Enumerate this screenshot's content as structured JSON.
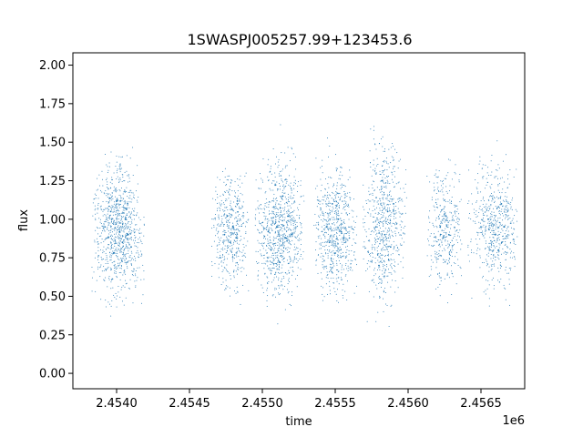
{
  "chart_data": {
    "type": "scatter",
    "title": "1SWASPJ005257.99+123453.6",
    "xlabel": "time",
    "ylabel": "flux",
    "x_offset_label": "1e6",
    "xlim": [
      2.4537,
      2.4568
    ],
    "ylim": [
      -0.1,
      2.08
    ],
    "xticks": [
      2.454,
      2.4545,
      2.455,
      2.4555,
      2.456,
      2.4565
    ],
    "xtick_labels": [
      "2.4540",
      "2.4545",
      "2.4550",
      "2.4555",
      "2.4560",
      "2.4565"
    ],
    "yticks": [
      0.0,
      0.25,
      0.5,
      0.75,
      1.0,
      1.25,
      1.5,
      1.75,
      2.0
    ],
    "ytick_labels": [
      "0.00",
      "0.25",
      "0.50",
      "0.75",
      "1.00",
      "1.25",
      "1.50",
      "1.75",
      "2.00"
    ],
    "grid": false,
    "point_color": "#1f77b4",
    "series": [
      {
        "x": [
          2.45392,
          2.45394,
          2.45396,
          2.45398,
          2.454,
          2.45402,
          2.45404,
          2.45406,
          2.45408,
          2.4541,
          2.45474,
          2.45476,
          2.45478,
          2.4548,
          2.45482,
          2.45504,
          2.45506,
          2.45508,
          2.4551,
          2.45512,
          2.45514,
          2.45516,
          2.45518,
          2.4552,
          2.45544,
          2.45546,
          2.45548,
          2.4555,
          2.45552,
          2.45554,
          2.45556,
          2.45578,
          2.4558,
          2.45582,
          2.45584,
          2.45586,
          2.45588,
          2.4559,
          2.45622,
          2.45624,
          2.45626,
          2.45628,
          2.4565,
          2.45655,
          2.4566,
          2.45662,
          2.45664,
          2.45666
        ],
        "y": [
          0.95,
          0.88,
          1.05,
          0.78,
          1.12,
          0.92,
          0.85,
          1.0,
          0.9,
          0.82,
          0.9,
          1.02,
          0.85,
          0.95,
          0.88,
          0.92,
          0.8,
          1.08,
          0.95,
          0.72,
          1.15,
          0.88,
          1.02,
          0.9,
          0.95,
          0.85,
          1.1,
          0.78,
          1.0,
          0.92,
          0.88,
          0.95,
          0.7,
          1.25,
          0.9,
          1.05,
          0.82,
          1.1,
          0.95,
          0.88,
          1.02,
          0.9,
          0.95,
          1.0,
          0.9,
          0.8,
          1.1,
          0.95
        ]
      }
    ]
  }
}
